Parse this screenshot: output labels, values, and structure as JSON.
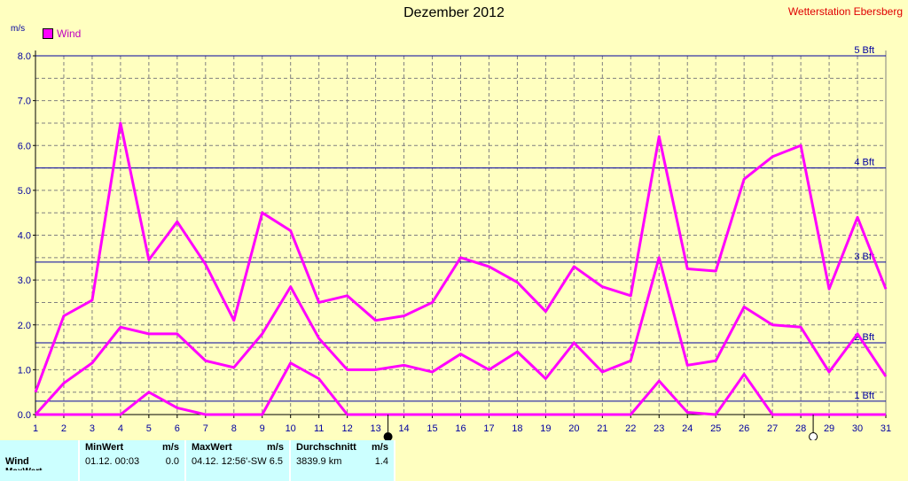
{
  "header": {
    "title": "Dezember 2012",
    "station": "Wetterstation Ebersberg",
    "unit": "m/s",
    "legend": "Wind"
  },
  "chart_data": {
    "type": "line",
    "title": "Dezember 2012",
    "ylabel": "m/s",
    "x": [
      1,
      2,
      3,
      4,
      5,
      6,
      7,
      8,
      9,
      10,
      11,
      12,
      13,
      14,
      15,
      16,
      17,
      18,
      19,
      20,
      21,
      22,
      23,
      24,
      25,
      26,
      27,
      28,
      29,
      30,
      31
    ],
    "ylim": [
      0,
      8.0
    ],
    "yticks": [
      "0.0",
      "1.0",
      "2.0",
      "3.0",
      "4.0",
      "5.0",
      "6.0",
      "7.0",
      "8.0"
    ],
    "grid": true,
    "legend_position": "top-left",
    "series": [
      {
        "name": "Wind",
        "color": "#ff00ff",
        "values": [
          0.5,
          2.2,
          2.55,
          6.5,
          3.45,
          4.3,
          3.35,
          2.1,
          4.5,
          4.1,
          2.5,
          2.65,
          2.1,
          2.2,
          2.5,
          3.5,
          3.3,
          2.95,
          2.3,
          3.3,
          2.85,
          2.65,
          6.2,
          3.25,
          3.2,
          5.25,
          5.75,
          6.0,
          2.8,
          4.4,
          2.8
        ]
      },
      {
        "color": "#ff00ff",
        "values": [
          0.0,
          0.7,
          1.15,
          1.95,
          1.8,
          1.8,
          1.2,
          1.05,
          1.8,
          2.85,
          1.7,
          1.0,
          1.0,
          1.1,
          0.95,
          1.35,
          1.0,
          1.4,
          0.8,
          1.6,
          0.95,
          1.2,
          3.5,
          1.1,
          1.2,
          2.4,
          2.0,
          1.95,
          0.95,
          1.8,
          0.85
        ]
      },
      {
        "color": "#ff00ff",
        "values": [
          0.0,
          0.0,
          0.0,
          0.0,
          0.5,
          0.15,
          0.0,
          0.0,
          0.0,
          1.15,
          0.8,
          0.0,
          0.0,
          0.0,
          0.0,
          0.0,
          0.0,
          0.0,
          0.0,
          0.0,
          0.0,
          0.0,
          0.75,
          0.05,
          0.0,
          0.9,
          0.0,
          0.0,
          0.0,
          0.0,
          0.0
        ]
      }
    ],
    "reference_lines": [
      {
        "label": "1 Bft",
        "value": 0.3
      },
      {
        "label": "2 Bft",
        "value": 1.6
      },
      {
        "label": "3 Bft",
        "value": 3.4
      },
      {
        "label": "4 Bft",
        "value": 5.5
      },
      {
        "label": "5 Bft",
        "value": 8.0
      }
    ],
    "moon_markers": [
      {
        "day": 13,
        "phase": "new"
      },
      {
        "day": 28,
        "phase": "full"
      }
    ]
  },
  "stats": {
    "label": "Wind",
    "label2": "MaxWert",
    "min_header": "MinWert",
    "min_unit": "m/s",
    "min_time": "01.12.  00:03",
    "min_value": "0.0",
    "max_header": "MaxWert",
    "max_unit": "m/s",
    "max_time": "04.12.  12:56'-SW",
    "max_value": "6.5",
    "avg_header": "Durchschnitt",
    "avg_unit": "m/s",
    "avg_km": "3839.9 km",
    "avg_value": "1.4"
  }
}
